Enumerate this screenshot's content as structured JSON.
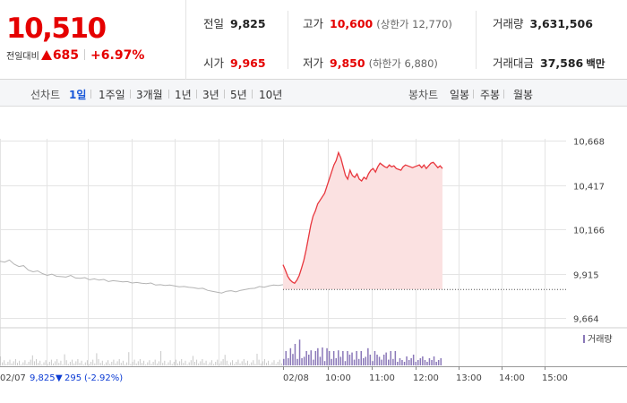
{
  "quote": {
    "price": "10,510",
    "change_label": "전일대비",
    "change": "685",
    "change_rate": "+6.97%",
    "prev_close_label": "전일",
    "prev_close": "9,825",
    "high_label": "고가",
    "high": "10,600",
    "upper_limit_label": "상한가",
    "upper_limit": "12,770",
    "volume_label": "거래량",
    "volume": "3,631,506",
    "open_label": "시가",
    "open": "9,965",
    "low_label": "저가",
    "low": "9,850",
    "lower_limit_label": "하한가",
    "lower_limit": "6,880",
    "amount_label": "거래대금",
    "amount": "37,586",
    "amount_unit": "백만"
  },
  "toolbar": {
    "line_chart_label": "선차트",
    "periods": [
      "1일",
      "1주일",
      "3개월",
      "1년",
      "3년",
      "5년",
      "10년"
    ],
    "active_period": "1일",
    "candle_chart_label": "봉차트",
    "candles": [
      "일봉",
      "주봉",
      "월봉"
    ]
  },
  "colors": {
    "up": "#e50000",
    "down": "#0b3bd4",
    "today_line": "#e8363d",
    "today_fill": "#fbe1e1",
    "prev_line": "#b3b3b3",
    "volume_bar": "#8a78b8",
    "active_tab": "#1a58d9"
  },
  "chart_data": {
    "type": "line",
    "y_ticks": [
      "10,668",
      "10,417",
      "10,166",
      "9,915",
      "9,664"
    ],
    "ylim": [
      9664,
      10668
    ],
    "prev_close_reference": 9825,
    "volume_legend": "거래량",
    "prev_day": {
      "date_label": "02/07",
      "close": "9,825",
      "change": "295",
      "change_rate": "(-2.92%)",
      "points": [
        9985,
        9980,
        9992,
        9968,
        9955,
        9960,
        9935,
        9925,
        9930,
        9915,
        9905,
        9912,
        9900,
        9898,
        9895,
        9905,
        9890,
        9888,
        9892,
        9880,
        9885,
        9878,
        9882,
        9870,
        9875,
        9872,
        9868,
        9870,
        9862,
        9865,
        9860,
        9858,
        9862,
        9850,
        9852,
        9848,
        9850,
        9845,
        9840,
        9842,
        9838,
        9835,
        9830,
        9832,
        9820,
        9815,
        9810,
        9805,
        9815,
        9818,
        9812,
        9820,
        9825,
        9830,
        9832,
        9842,
        9838,
        9845,
        9850,
        9848,
        9852
      ]
    },
    "today": {
      "date_label": "02/08",
      "x_ticks": [
        "10:00",
        "11:00",
        "12:00",
        "13:00",
        "14:00",
        "15:00"
      ],
      "points": [
        9965,
        9935,
        9900,
        9880,
        9868,
        9860,
        9878,
        9905,
        9945,
        9990,
        10050,
        10120,
        10190,
        10240,
        10270,
        10310,
        10330,
        10350,
        10370,
        10410,
        10450,
        10490,
        10530,
        10555,
        10600,
        10570,
        10520,
        10470,
        10450,
        10500,
        10470,
        10460,
        10480,
        10450,
        10440,
        10460,
        10450,
        10480,
        10500,
        10510,
        10490,
        10520,
        10540,
        10530,
        10520,
        10515,
        10530,
        10520,
        10525,
        10510,
        10505,
        10500,
        10520,
        10530,
        10525,
        10520,
        10515,
        10520,
        10525,
        10530,
        10515,
        10530,
        10510,
        10525,
        10540,
        10545,
        10530,
        10515,
        10525,
        10510
      ]
    },
    "volume_bars": [
      3,
      5,
      2,
      8,
      4,
      6,
      3,
      9,
      2,
      4,
      5,
      3,
      7,
      2,
      4,
      8,
      3,
      5,
      2,
      6,
      4,
      3,
      5,
      2,
      7,
      3,
      4,
      2,
      5,
      3,
      6,
      2,
      4,
      3,
      5,
      2,
      4,
      6,
      3,
      2,
      5,
      3,
      4,
      2,
      3,
      6,
      2,
      4,
      3,
      5,
      2,
      4,
      3,
      2,
      5,
      3,
      4,
      6,
      2,
      3,
      4,
      5,
      3,
      2,
      4,
      3,
      5,
      2,
      3,
      4
    ]
  }
}
